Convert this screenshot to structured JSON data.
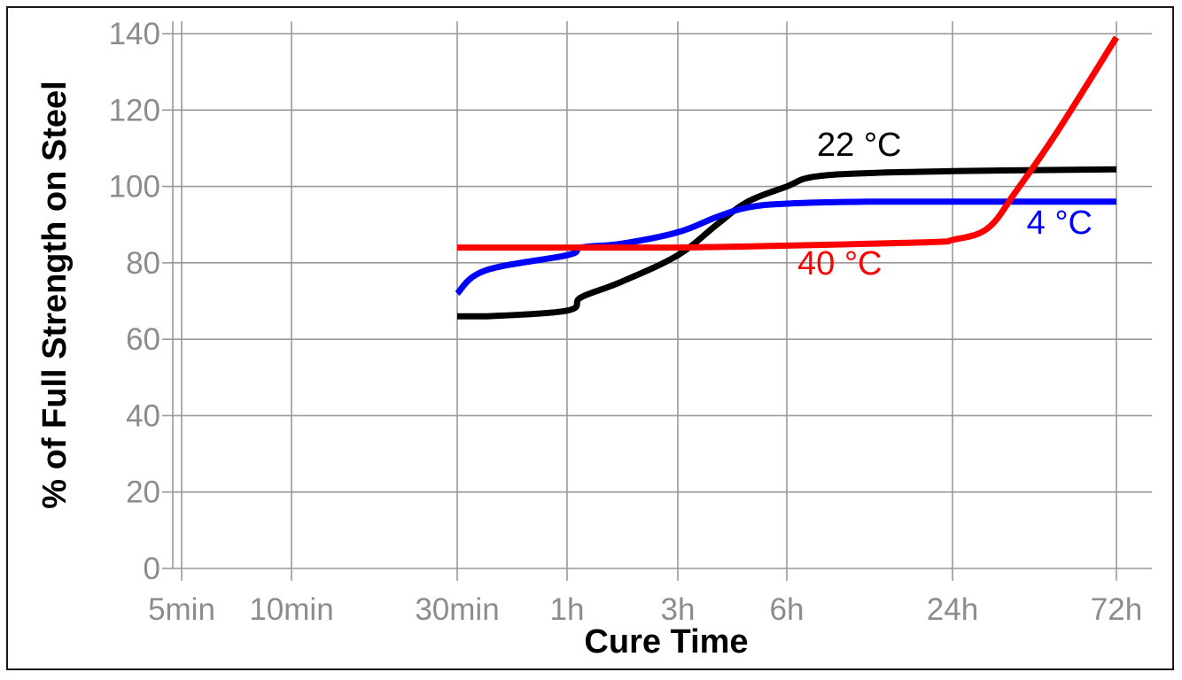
{
  "chart_data": {
    "type": "line",
    "xlabel": "Cure Time",
    "ylabel": "% of Full Strength on Steel",
    "x_ticks": [
      "5min",
      "10min",
      "30min",
      "1h",
      "3h",
      "6h",
      "24h",
      "72h"
    ],
    "x_tick_minutes": [
      5,
      10,
      30,
      60,
      180,
      360,
      1440,
      4320
    ],
    "x_scale": "log",
    "y_ticks": [
      0,
      20,
      40,
      60,
      80,
      100,
      120,
      140
    ],
    "ylim": [
      0,
      140
    ],
    "grid": true,
    "legend": "none",
    "series": [
      {
        "name": "22 °C",
        "color": "#000000",
        "x_minutes": [
          30,
          45,
          60,
          90,
          120,
          180,
          240,
          300,
          360,
          480,
          720,
          1440,
          4320
        ],
        "y": [
          66,
          66,
          67.5,
          71,
          75,
          82,
          90,
          96,
          100,
          102.5,
          103.5,
          104,
          104.5
        ]
      },
      {
        "name": "4 °C",
        "color": "#0000ff",
        "x_minutes": [
          30,
          45,
          60,
          90,
          120,
          180,
          240,
          300,
          360,
          720,
          1440,
          4320
        ],
        "y": [
          72,
          78,
          82,
          84,
          85,
          88,
          92,
          94.5,
          95.5,
          96,
          96,
          96
        ]
      },
      {
        "name": "40 °C",
        "color": "#ff0000",
        "x_minutes": [
          30,
          60,
          180,
          360,
          720,
          1200,
          1440,
          1700,
          2100,
          2800,
          4320
        ],
        "y": [
          84,
          84,
          84,
          84.5,
          85,
          85.5,
          86,
          89,
          99,
          114,
          139
        ]
      }
    ]
  }
}
